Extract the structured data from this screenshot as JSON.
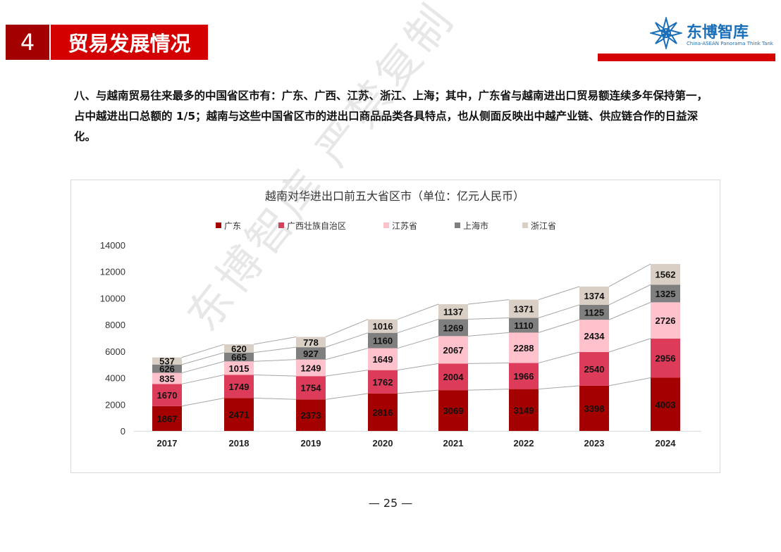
{
  "header": {
    "section_number": "4",
    "section_title": "贸易发展情况",
    "logo_cn": "东博智库",
    "logo_en": "China-ASEAN Panorama Think Tank"
  },
  "paragraph": "八、与越南贸易往来最多的中国省区市有：广东、广西、江苏、浙江、上海；其中，广东省与越南进出口贸易额连续多年保持第一，占中越进出口总额的 1/5；越南与这些中国省区市的进出口商品品类各具特点，也从侧面反映出中越产业链、供应链合作的日益深化。",
  "watermark": "东博智库 严禁复制",
  "page_number": "— 25 —",
  "chart_data": {
    "type": "bar",
    "stacked": true,
    "title": "越南对华进出口前五大省区市（单位：亿元人民币）",
    "categories": [
      "2017",
      "2018",
      "2019",
      "2020",
      "2021",
      "2022",
      "2023",
      "2024"
    ],
    "series": [
      {
        "name": "广东",
        "color": "#a50000",
        "values": [
          1867,
          2471,
          2373,
          2816,
          3069,
          3149,
          3398,
          4003
        ]
      },
      {
        "name": "广西壮族自治区",
        "color": "#dc3c5a",
        "values": [
          1670,
          1749,
          1754,
          1762,
          2004,
          1966,
          2540,
          2956
        ]
      },
      {
        "name": "江苏省",
        "color": "#ffc2cc",
        "values": [
          835,
          1015,
          1249,
          1649,
          2067,
          2288,
          2434,
          2726
        ]
      },
      {
        "name": "上海市",
        "color": "#7f7f7f",
        "values": [
          626,
          665,
          927,
          1160,
          1269,
          1110,
          1125,
          1325
        ]
      },
      {
        "name": "浙江省",
        "color": "#d9cfc5",
        "values": [
          537,
          620,
          778,
          1016,
          1137,
          1371,
          1374,
          1562
        ]
      }
    ],
    "yticks": [
      "0",
      "2000",
      "4000",
      "6000",
      "8000",
      "10000",
      "12000",
      "14000"
    ],
    "ylim": [
      0,
      14000
    ],
    "legend": "top",
    "grid": false,
    "series_lines": true
  }
}
